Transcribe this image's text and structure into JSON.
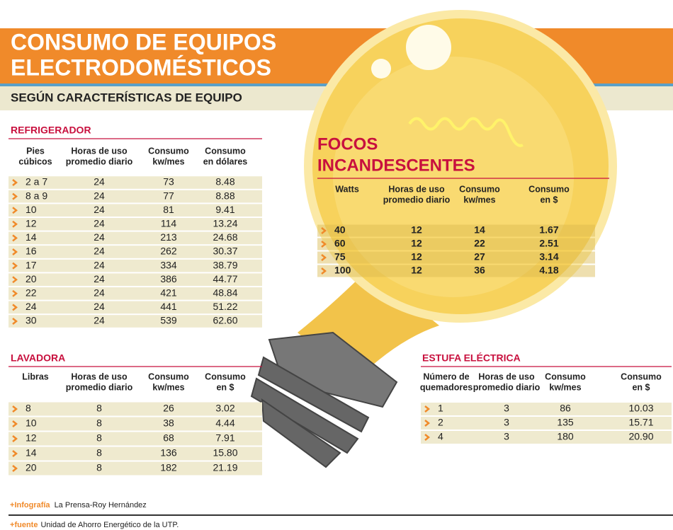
{
  "header": {
    "title": [
      "CONSUMO DE EQUIPOS",
      "ELECTRODOMÉSTICOS"
    ],
    "subtitle": "SEGÚN CARACTERÍSTICAS DE EQUIPO"
  },
  "refrigerador": {
    "title": "REFRIGERADOR",
    "headers": [
      [
        "Pies",
        "cúbicos"
      ],
      [
        "Horas de uso",
        "promedio diario"
      ],
      [
        "Consumo",
        "kw/mes"
      ],
      [
        "Consumo",
        "en dólares"
      ]
    ],
    "rows": [
      [
        "2 a 7",
        "24",
        "73",
        "8.48"
      ],
      [
        "8 a 9",
        "24",
        "77",
        "8.88"
      ],
      [
        "10",
        "24",
        "81",
        "9.41"
      ],
      [
        "12",
        "24",
        "114",
        "13.24"
      ],
      [
        "14",
        "24",
        "213",
        "24.68"
      ],
      [
        "16",
        "24",
        "262",
        "30.37"
      ],
      [
        "17",
        "24",
        "334",
        "38.79"
      ],
      [
        "20",
        "24",
        "386",
        "44.77"
      ],
      [
        "22",
        "24",
        "421",
        "48.84"
      ],
      [
        "24",
        "24",
        "441",
        "51.22"
      ],
      [
        "30",
        "24",
        "539",
        "62.60"
      ]
    ]
  },
  "focos": {
    "title": [
      "FOCOS",
      "INCANDESCENTES"
    ],
    "headers": [
      [
        "Watts"
      ],
      [
        "Horas de uso",
        "promedio diario"
      ],
      [
        "Consumo",
        "kw/mes"
      ],
      [
        "Consumo",
        "en $"
      ]
    ],
    "rows": [
      [
        "40",
        "12",
        "14",
        "1.67"
      ],
      [
        "60",
        "12",
        "22",
        "2.51"
      ],
      [
        "75",
        "12",
        "27",
        "3.14"
      ],
      [
        "100",
        "12",
        "36",
        "4.18"
      ]
    ]
  },
  "lavadora": {
    "title": "LAVADORA",
    "headers": [
      [
        "Libras"
      ],
      [
        "Horas de uso",
        "promedio diario"
      ],
      [
        "Consumo",
        "kw/mes"
      ],
      [
        "Consumo",
        "en $"
      ]
    ],
    "rows": [
      [
        "8",
        "8",
        "26",
        "3.02"
      ],
      [
        "10",
        "8",
        "38",
        "4.44"
      ],
      [
        "12",
        "8",
        "68",
        "7.91"
      ],
      [
        "14",
        "8",
        "136",
        "15.80"
      ],
      [
        "20",
        "8",
        "182",
        "21.19"
      ]
    ]
  },
  "estufa": {
    "title": "ESTUFA ELÉCTRICA",
    "headers": [
      [
        "Número de",
        "quemadores"
      ],
      [
        "Horas de uso",
        "promedio diario"
      ],
      [
        "Consumo",
        "kw/mes"
      ],
      [
        "Consumo",
        "en $"
      ]
    ],
    "rows": [
      [
        "1",
        "3",
        "86",
        "10.03"
      ],
      [
        "2",
        "3",
        "135",
        "15.71"
      ],
      [
        "4",
        "3",
        "180",
        "20.90"
      ]
    ]
  },
  "footer": {
    "credit": {
      "label": "Infografía",
      "text": "La Prensa-Roy Hernández"
    },
    "source": {
      "label": "fuente",
      "text": "Unidad de Ahorro Energético de la UTP."
    }
  }
}
